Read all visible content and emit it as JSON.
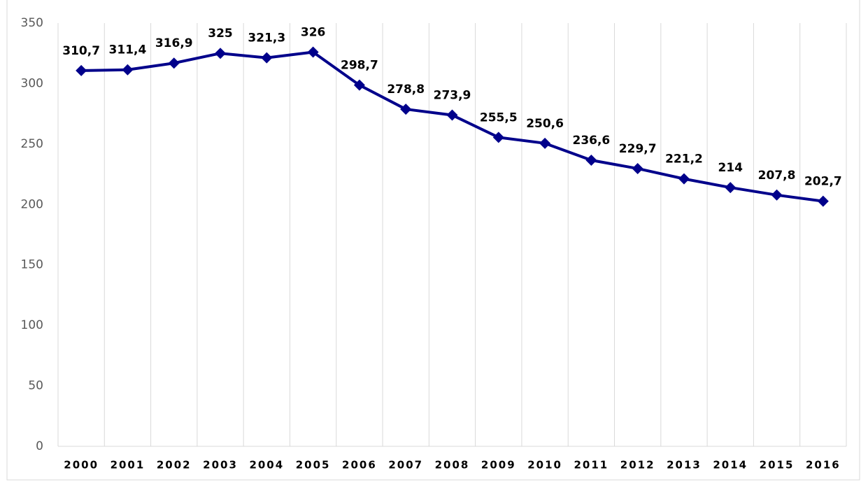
{
  "chart_data": {
    "type": "line",
    "categories": [
      "2000",
      "2001",
      "2002",
      "2003",
      "2004",
      "2005",
      "2006",
      "2007",
      "2008",
      "2009",
      "2010",
      "2011",
      "2012",
      "2013",
      "2014",
      "2015",
      "2016"
    ],
    "series": [
      {
        "color": "#00008B",
        "values": [
          310.7,
          311.4,
          316.9,
          325,
          321.3,
          326,
          298.7,
          278.8,
          273.9,
          255.5,
          250.6,
          236.6,
          229.7,
          221.2,
          214,
          207.8,
          202.7
        ],
        "value_labels": [
          "310,7",
          "311,4",
          "316,9",
          "325",
          "321,3",
          "326",
          "298,7",
          "278,8",
          "273,9",
          "255,5",
          "250,6",
          "236,6",
          "229,7",
          "221,2",
          "214",
          "207,8",
          "202,7"
        ]
      }
    ],
    "ylim": [
      0,
      350
    ],
    "yticks": [
      0,
      50,
      100,
      150,
      200,
      250,
      300,
      350
    ],
    "grid": "vertical"
  }
}
